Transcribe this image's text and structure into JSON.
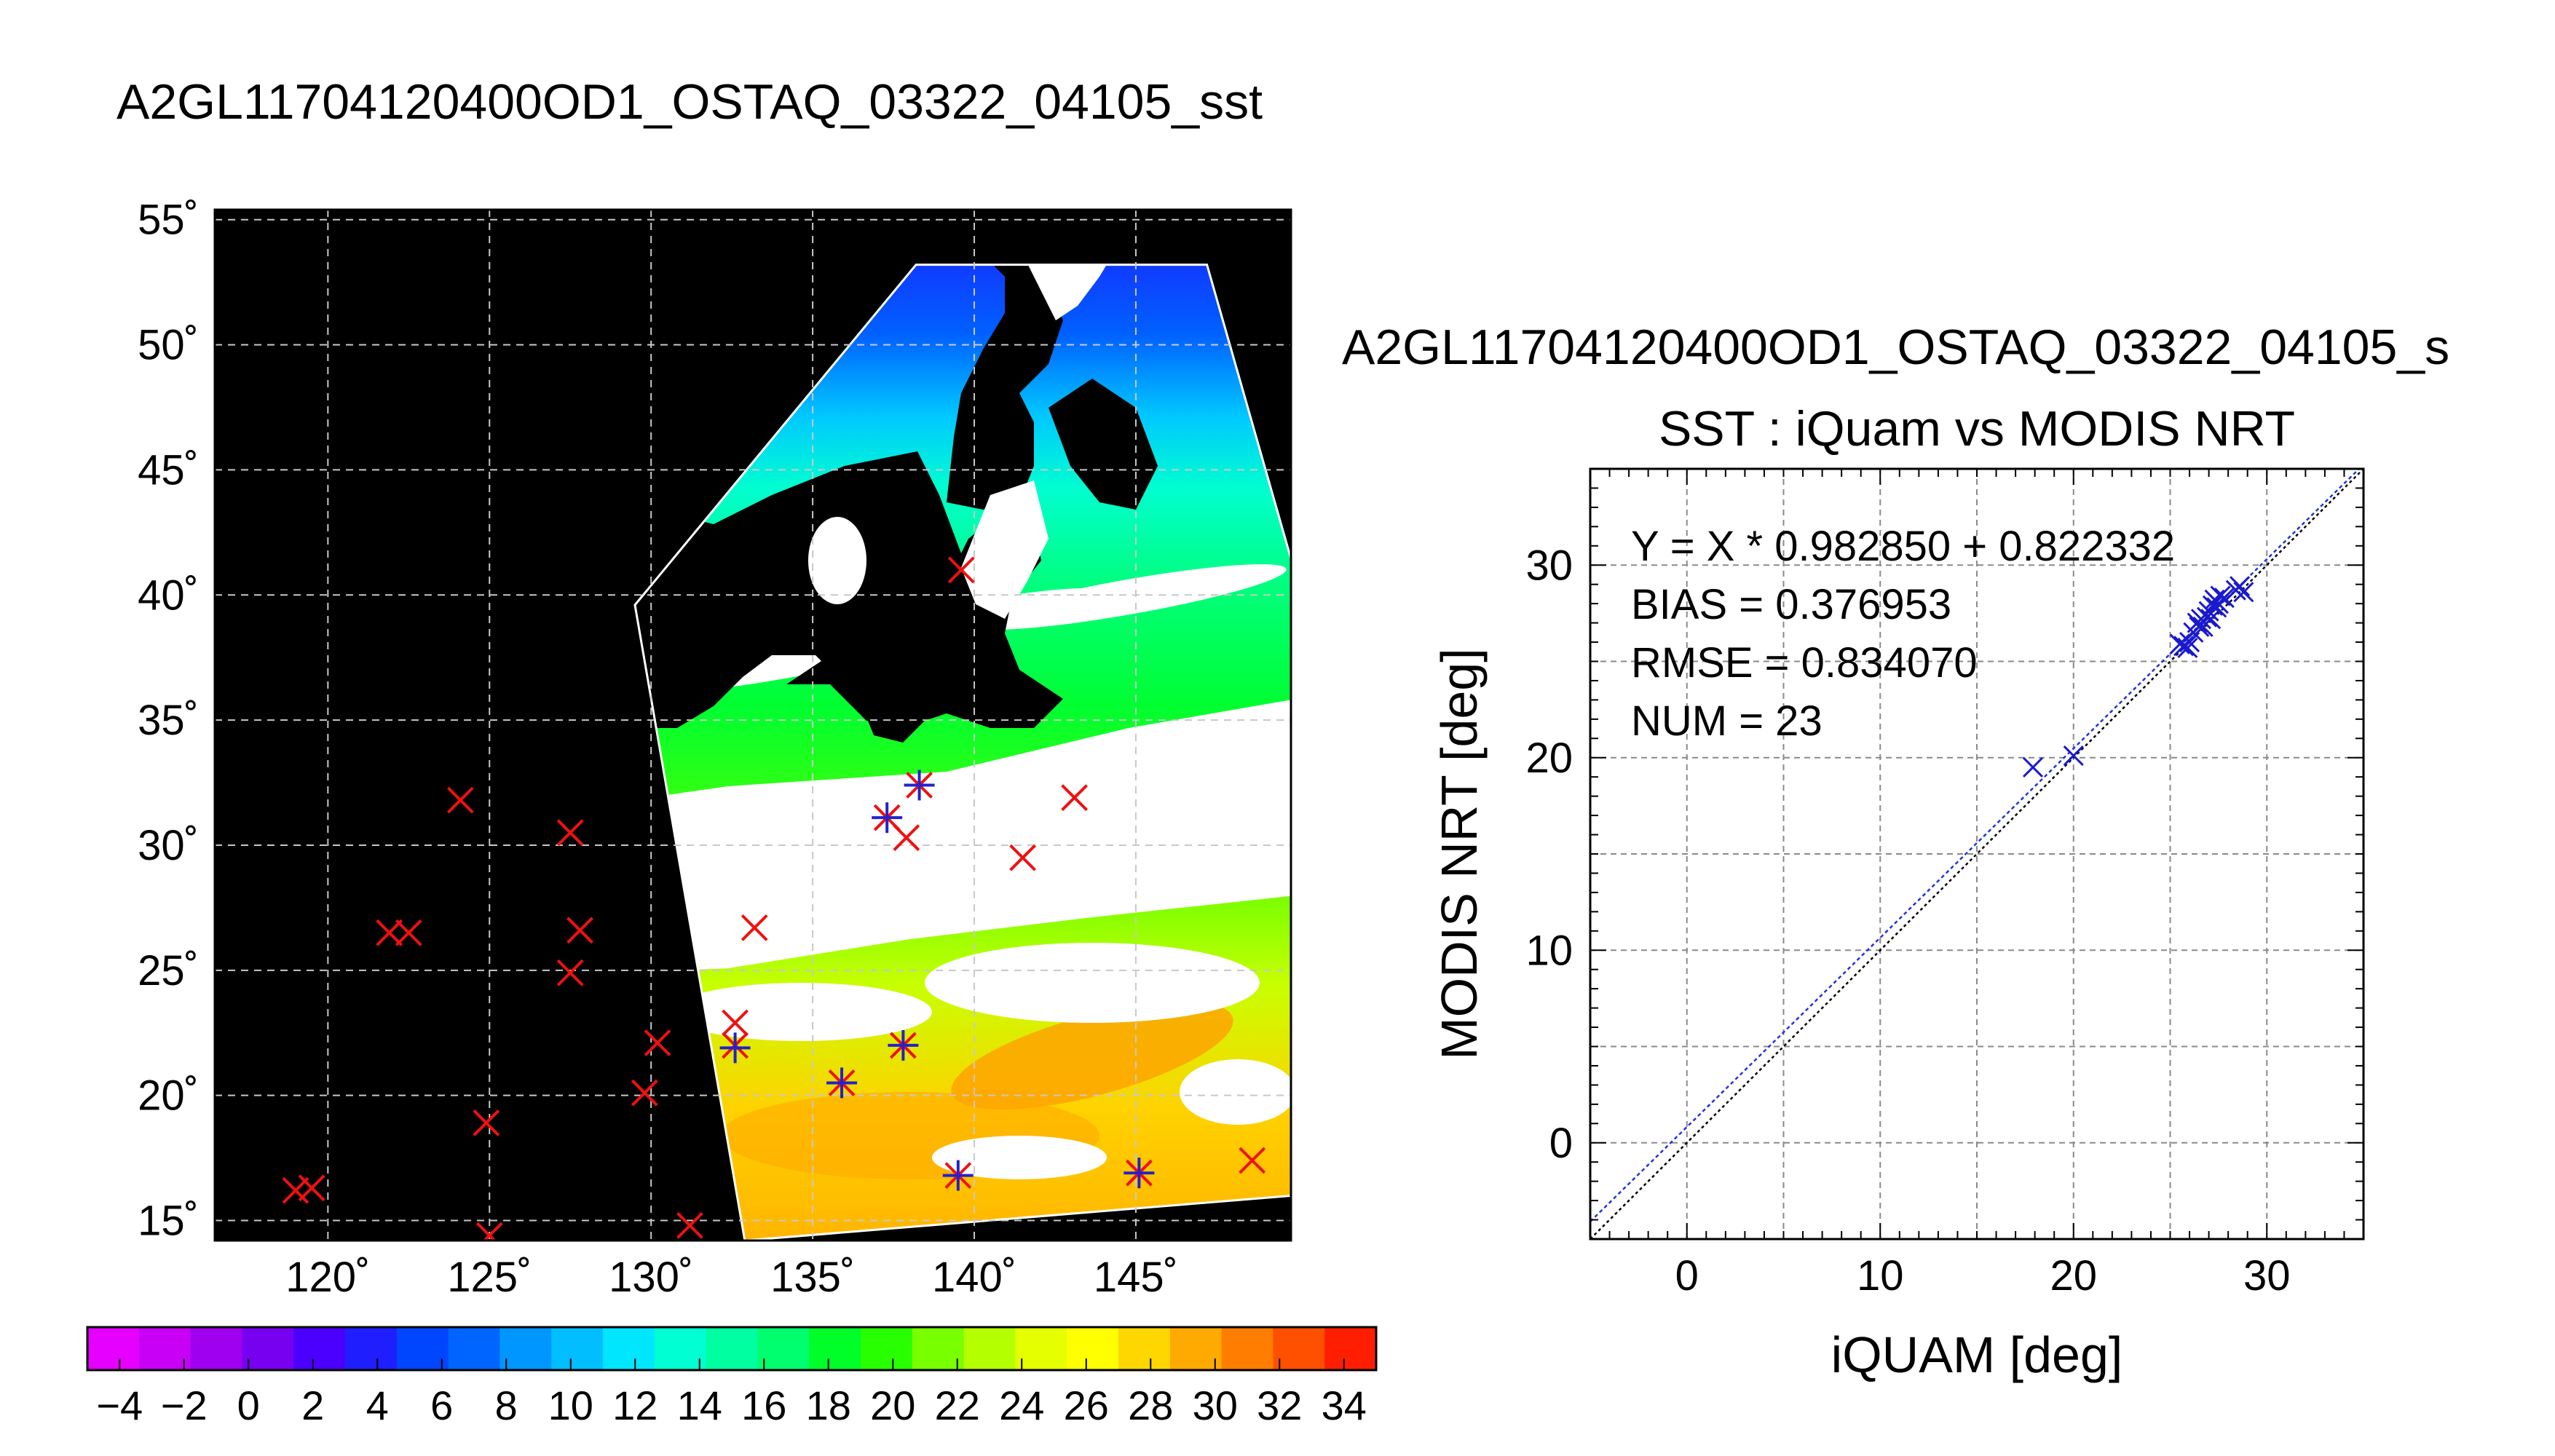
{
  "chart_data": [
    {
      "type": "map",
      "title": "A2GL11704120400OD1_OSTAQ_03322_04105_sst",
      "xlabel": "",
      "ylabel": "",
      "x_ticks": [
        {
          "value": 120,
          "label": "120˚"
        },
        {
          "value": 125,
          "label": "125˚"
        },
        {
          "value": 130,
          "label": "130˚"
        },
        {
          "value": 135,
          "label": "135˚"
        },
        {
          "value": 140,
          "label": "140˚"
        },
        {
          "value": 145,
          "label": "145˚"
        }
      ],
      "y_ticks": [
        {
          "value": 15,
          "label": "15˚"
        },
        {
          "value": 20,
          "label": "20˚"
        },
        {
          "value": 25,
          "label": "25˚"
        },
        {
          "value": 30,
          "label": "30˚"
        },
        {
          "value": 35,
          "label": "35˚"
        },
        {
          "value": 40,
          "label": "40˚"
        },
        {
          "value": 45,
          "label": "45˚"
        },
        {
          "value": 50,
          "label": "50˚"
        },
        {
          "value": 55,
          "label": "55˚"
        }
      ],
      "xlim": [
        116.5,
        149.8
      ],
      "ylim": [
        14.2,
        55.4
      ],
      "grid": true,
      "colors": {
        "background": "#000000",
        "land": "#000000",
        "cloud": "#ffffff",
        "marker_all": "#ee1111",
        "marker_matched": "#2222cc"
      },
      "swath": [
        [
          129.5,
          39.6
        ],
        [
          138.2,
          53.2
        ],
        [
          147.2,
          53.2
        ],
        [
          149.9,
          41.0
        ],
        [
          149.9,
          16.0
        ],
        [
          132.9,
          14.2
        ]
      ],
      "markers_all": [
        [
          119.0,
          16.2
        ],
        [
          119.5,
          16.3
        ],
        [
          121.9,
          26.5
        ],
        [
          122.5,
          26.5
        ],
        [
          124.1,
          31.8
        ],
        [
          124.9,
          18.9
        ],
        [
          125.0,
          14.4
        ],
        [
          127.5,
          30.5
        ],
        [
          127.5,
          24.9
        ],
        [
          127.8,
          26.6
        ],
        [
          129.8,
          20.1
        ],
        [
          130.2,
          22.1
        ],
        [
          131.2,
          14.8
        ],
        [
          132.6,
          22.9
        ],
        [
          132.6,
          22.0
        ],
        [
          133.2,
          26.7
        ],
        [
          135.9,
          20.5
        ],
        [
          137.3,
          31.1
        ],
        [
          137.8,
          22.0
        ],
        [
          137.9,
          30.3
        ],
        [
          138.3,
          32.4
        ],
        [
          139.5,
          16.8
        ],
        [
          139.6,
          41.0
        ],
        [
          141.5,
          29.5
        ],
        [
          143.1,
          31.9
        ],
        [
          145.1,
          16.9
        ],
        [
          148.6,
          17.4
        ]
      ],
      "markers_matched": [
        [
          132.6,
          21.9
        ],
        [
          135.9,
          20.5
        ],
        [
          137.3,
          31.1
        ],
        [
          137.8,
          22.0
        ],
        [
          138.3,
          32.4
        ],
        [
          139.5,
          16.8
        ],
        [
          145.1,
          16.9
        ]
      ]
    },
    {
      "type": "colorbar",
      "min": -5,
      "max": 35,
      "step": 2,
      "tick_labels": [
        "−4",
        "−2",
        "0",
        "2",
        "4",
        "6",
        "8",
        "10",
        "12",
        "14",
        "16",
        "18",
        "20",
        "22",
        "24",
        "26",
        "28",
        "30",
        "32",
        "34"
      ],
      "tick_values": [
        -4,
        -2,
        0,
        2,
        4,
        6,
        8,
        10,
        12,
        14,
        16,
        18,
        20,
        22,
        24,
        26,
        28,
        30,
        32,
        34
      ],
      "colors": [
        "#e600ff",
        "#c800f5",
        "#a000f0",
        "#7800f0",
        "#4b00ff",
        "#1e1eff",
        "#0046ff",
        "#0064ff",
        "#0096ff",
        "#00beff",
        "#00e6ff",
        "#00ffd2",
        "#00ffa0",
        "#00ff6e",
        "#00ff28",
        "#28ff00",
        "#78ff00",
        "#b4ff00",
        "#e6ff00",
        "#ffff00",
        "#ffd700",
        "#ffaa00",
        "#ff7d00",
        "#ff5000",
        "#ff1e00"
      ]
    },
    {
      "type": "scatter",
      "title": "SST : iQuam vs MODIS NRT",
      "heading": "A2GL11704120400OD1_OSTAQ_03322_04105_s",
      "xlabel": "iQUAM [deg]",
      "ylabel": "MODIS NRT [deg]",
      "xlim": [
        -5,
        35
      ],
      "ylim": [
        -5,
        35
      ],
      "x_ticks": [
        0,
        10,
        20,
        30
      ],
      "y_ticks": [
        0,
        10,
        20,
        30
      ],
      "x_tick_labels": [
        "0",
        "10",
        "20",
        "30"
      ],
      "y_tick_labels": [
        "0",
        "10",
        "20",
        "30"
      ],
      "grid": true,
      "stats": [
        "Y = X * 0.982850 + 0.822332",
        "BIAS = 0.376953",
        "RMSE = 0.834070",
        "NUM = 23"
      ],
      "fit": {
        "slope": 0.98285,
        "intercept": 0.822332
      },
      "colors": {
        "marker": "#1a1acc",
        "fit_line": "#2233dd",
        "identity_line": "#000000"
      },
      "points": [
        [
          17.9,
          19.5
        ],
        [
          20.0,
          20.1
        ],
        [
          25.5,
          25.9
        ],
        [
          25.7,
          25.8
        ],
        [
          25.9,
          25.7
        ],
        [
          26.0,
          26.0
        ],
        [
          26.2,
          26.5
        ],
        [
          26.4,
          27.0
        ],
        [
          26.5,
          26.8
        ],
        [
          26.6,
          27.2
        ],
        [
          26.7,
          26.8
        ],
        [
          26.9,
          27.3
        ],
        [
          27.0,
          27.6
        ],
        [
          27.1,
          27.2
        ],
        [
          27.2,
          27.9
        ],
        [
          27.3,
          28.2
        ],
        [
          27.4,
          27.8
        ],
        [
          27.5,
          28.0
        ],
        [
          27.6,
          28.4
        ],
        [
          27.8,
          28.3
        ],
        [
          28.4,
          28.7
        ],
        [
          28.6,
          28.9
        ],
        [
          28.8,
          28.6
        ]
      ]
    }
  ]
}
